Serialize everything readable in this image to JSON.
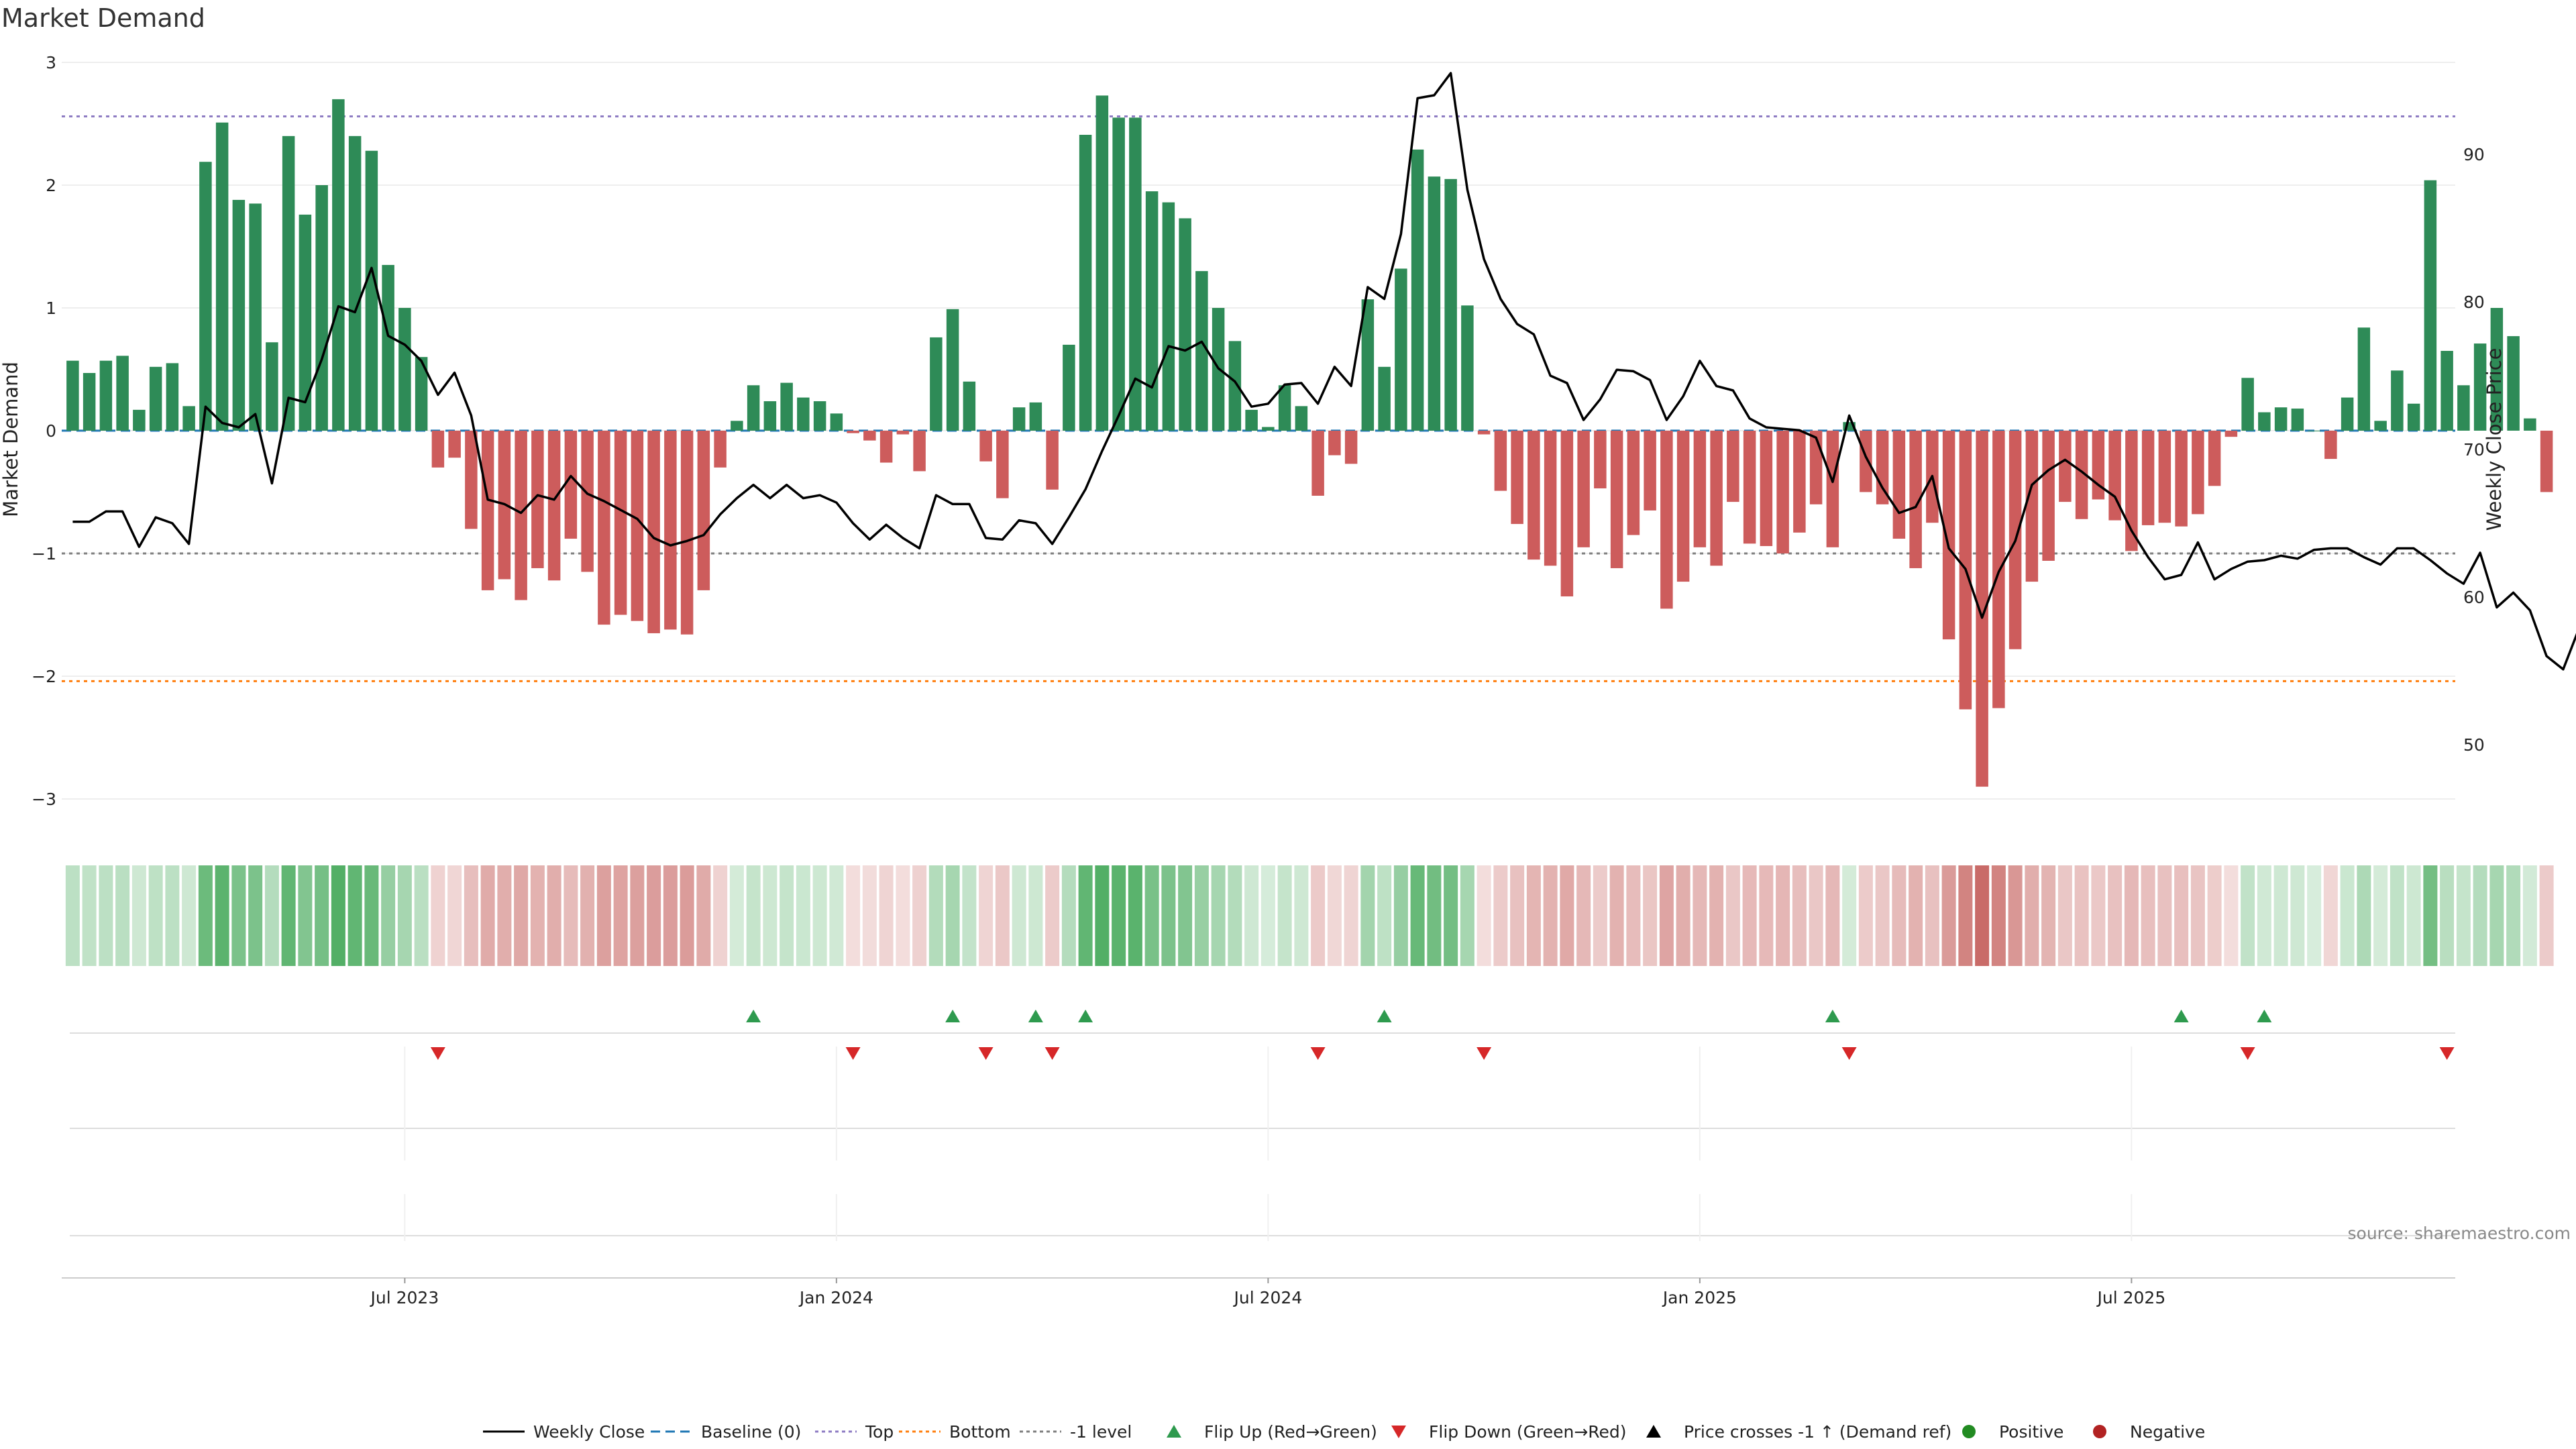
{
  "chart_data": {
    "type": "bar",
    "title": "Market Demand",
    "ylabel": "Market Demand",
    "y2label": "Weekly Close Price",
    "ylim": [
      -3.2,
      3.05
    ],
    "y2lim": [
      45.4,
      97.0
    ],
    "yticks": [
      3,
      2,
      1,
      0,
      -1,
      -2,
      -3
    ],
    "yticklabels": [
      "3",
      "2",
      "1",
      "0",
      "−1",
      "−2",
      "−3"
    ],
    "y2ticks": [
      90,
      80,
      70,
      60,
      50
    ],
    "xticks": [
      {
        "week": 20,
        "label": "Jul 2023"
      },
      {
        "week": 46,
        "label": "Jan 2024"
      },
      {
        "week": 72,
        "label": "Jul 2024"
      },
      {
        "week": 98,
        "label": "Jan 2025"
      },
      {
        "week": 124,
        "label": "Jul 2025"
      }
    ],
    "reference_lines": [
      {
        "name": "Top",
        "value": 2.56,
        "color": "#8e7cc3"
      },
      {
        "name": "Bottom",
        "value": -2.04,
        "color": "#ff7f0e"
      },
      {
        "name": "-1 level",
        "value": -1.0,
        "color": "#7f7f7f"
      },
      {
        "name": "Baseline (0)",
        "value": 0,
        "color": "#1f77b4"
      }
    ],
    "demand": [
      0.57,
      0.47,
      0.57,
      0.61,
      0.17,
      0.52,
      0.55,
      0.2,
      2.19,
      2.51,
      1.88,
      1.85,
      0.72,
      2.4,
      1.76,
      2.0,
      2.7,
      2.4,
      2.28,
      1.35,
      1.0,
      0.6,
      -0.3,
      -0.22,
      -0.8,
      -1.3,
      -1.21,
      -1.38,
      -1.12,
      -1.22,
      -0.88,
      -1.15,
      -1.58,
      -1.5,
      -1.55,
      -1.65,
      -1.62,
      -1.66,
      -1.3,
      -0.3,
      0.08,
      0.37,
      0.24,
      0.39,
      0.27,
      0.24,
      0.14,
      -0.02,
      -0.08,
      -0.26,
      -0.03,
      -0.33,
      0.76,
      0.99,
      0.4,
      -0.25,
      -0.55,
      0.19,
      0.23,
      -0.48,
      0.7,
      2.41,
      2.73,
      2.55,
      2.55,
      1.95,
      1.86,
      1.73,
      1.3,
      1.0,
      0.73,
      0.17,
      0.03,
      0.37,
      0.2,
      -0.53,
      -0.2,
      -0.27,
      1.07,
      0.52,
      1.32,
      2.29,
      2.07,
      2.05,
      1.02,
      -0.03,
      -0.49,
      -0.76,
      -1.05,
      -1.1,
      -1.35,
      -0.95,
      -0.47,
      -1.12,
      -0.85,
      -0.65,
      -1.45,
      -1.23,
      -0.95,
      -1.1,
      -0.58,
      -0.92,
      -0.94,
      -1.0,
      -0.83,
      -0.6,
      -0.95,
      0.07,
      -0.5,
      -0.6,
      -0.88,
      -1.12,
      -0.75,
      -1.7,
      -2.27,
      -2.9,
      -2.26,
      -1.78,
      -1.23,
      -1.06,
      -0.58,
      -0.72,
      -0.56,
      -0.73,
      -0.98,
      -0.77,
      -0.75,
      -0.78,
      -0.68,
      -0.45,
      -0.05,
      0.43,
      0.15,
      0.19,
      0.18,
      0.0,
      -0.23,
      0.27,
      0.84,
      0.08,
      0.49,
      0.22,
      2.04,
      0.65,
      0.37,
      0.71,
      1.0,
      0.77,
      0.1,
      -0.5
    ],
    "price": [
      65.1,
      65.1,
      65.8,
      65.8,
      63.4,
      65.4,
      65.0,
      63.6,
      72.9,
      71.8,
      71.5,
      72.4,
      67.7,
      73.5,
      73.2,
      76.1,
      79.7,
      79.3,
      82.3,
      77.7,
      77.1,
      76.0,
      73.7,
      75.2,
      72.3,
      66.6,
      66.3,
      65.7,
      66.9,
      66.6,
      68.2,
      67.0,
      66.5,
      65.9,
      65.3,
      64.0,
      63.5,
      63.8,
      64.2,
      65.6,
      66.7,
      67.6,
      66.7,
      67.6,
      66.7,
      66.9,
      66.4,
      65.0,
      63.9,
      64.9,
      64.0,
      63.3,
      66.9,
      66.3,
      66.3,
      64.0,
      63.9,
      65.2,
      65.0,
      63.6,
      65.4,
      67.3,
      69.9,
      72.3,
      74.8,
      74.2,
      77.0,
      76.7,
      77.3,
      75.5,
      74.6,
      72.9,
      73.1,
      74.4,
      74.5,
      73.1,
      75.6,
      74.3,
      81.0,
      80.2,
      84.6,
      93.8,
      94.0,
      95.5,
      87.6,
      82.9,
      80.2,
      78.5,
      77.8,
      75.0,
      74.5,
      72.0,
      73.4,
      75.4,
      75.3,
      74.7,
      72.0,
      73.6,
      76.0,
      74.3,
      74.0,
      72.1,
      71.5,
      71.4,
      71.3,
      70.8,
      67.8,
      72.3,
      69.5,
      67.4,
      65.7,
      66.1,
      68.2,
      63.3,
      61.9,
      58.6,
      61.7,
      63.8,
      67.6,
      68.6,
      69.3,
      68.5,
      67.6,
      66.8,
      64.5,
      62.7,
      61.2,
      61.5,
      63.7,
      61.2,
      61.9,
      62.4,
      62.5,
      62.8,
      62.6,
      63.2,
      63.3,
      63.3,
      62.7,
      62.2,
      63.3,
      63.3,
      62.5,
      61.6,
      60.9,
      63.0,
      59.3,
      60.3,
      59.1,
      56.0,
      55.1,
      58.0
    ],
    "flip_up": [
      41,
      53,
      58,
      61,
      79,
      106,
      127,
      132
    ],
    "flip_down": [
      22,
      47,
      55,
      59,
      75,
      85,
      107,
      131,
      143
    ],
    "legend": [
      {
        "label": "Weekly Close",
        "type": "line",
        "color": "#000000"
      },
      {
        "label": "Baseline (0)",
        "type": "dashed",
        "color": "#1f77b4"
      },
      {
        "label": "Top",
        "type": "dotted",
        "color": "#8e7cc3"
      },
      {
        "label": "Bottom",
        "type": "dotted",
        "color": "#ff7f0e"
      },
      {
        "label": "-1 level",
        "type": "dotted",
        "color": "#7f7f7f"
      },
      {
        "label": "Flip Up (Red→Green)",
        "type": "triangle-up",
        "color": "#2e9a4e"
      },
      {
        "label": "Flip Down (Green→Red)",
        "type": "triangle-down",
        "color": "#d62728"
      },
      {
        "label": "Price crosses -1 ↑ (Demand ref)",
        "type": "triangle-up",
        "color": "#000000"
      },
      {
        "label": "Positive",
        "type": "circle",
        "color": "#228b22"
      },
      {
        "label": "Negative",
        "type": "circle",
        "color": "#b22222"
      }
    ],
    "source": "source: sharemaestro.com",
    "colors": {
      "positive_bar": "#2e8b57",
      "negative_bar": "#cd5c5c",
      "positive_strip": "#4aab5e",
      "negative_strip": "#c96b68"
    }
  }
}
